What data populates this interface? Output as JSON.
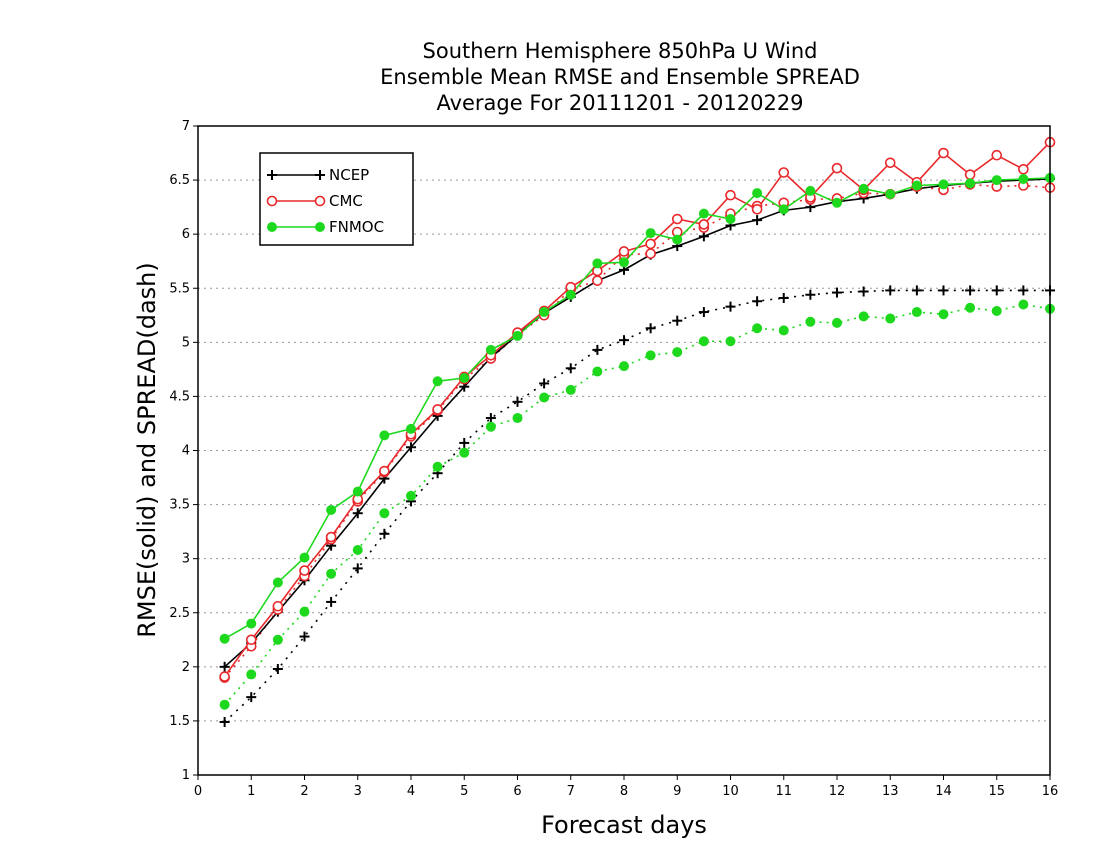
{
  "chart_data": {
    "type": "line",
    "title_lines": [
      "Southern Hemisphere 850hPa U Wind",
      "Ensemble Mean RMSE and Ensemble SPREAD",
      "Average For 20111201 - 20120229"
    ],
    "xlabel": "Forecast days",
    "ylabel": "RMSE(solid) and SPREAD(dash)",
    "xlim": [
      0,
      16
    ],
    "ylim": [
      1,
      7
    ],
    "xticks": [
      "0",
      "1",
      "2",
      "3",
      "4",
      "5",
      "6",
      "7",
      "8",
      "9",
      "10",
      "11",
      "12",
      "13",
      "14",
      "15",
      "16"
    ],
    "yticks": [
      "1",
      "1.5",
      "2",
      "2.5",
      "3",
      "3.5",
      "4",
      "4.5",
      "5",
      "5.5",
      "6",
      "6.5",
      "7"
    ],
    "grid": "dotted-horizontal",
    "legend_position": "top-left",
    "x": [
      0.5,
      1,
      1.5,
      2,
      2.5,
      3,
      3.5,
      4,
      4.5,
      5,
      5.5,
      6,
      6.5,
      7,
      7.5,
      8,
      8.5,
      9,
      9.5,
      10,
      10.5,
      11,
      11.5,
      12,
      12.5,
      13,
      13.5,
      14,
      14.5,
      15,
      15.5,
      16
    ],
    "series": [
      {
        "name": "NCEP",
        "color": "#000000",
        "marker": "plus",
        "rmse": [
          2.0,
          2.22,
          2.51,
          2.8,
          3.12,
          3.42,
          3.74,
          4.03,
          4.32,
          4.59,
          4.86,
          5.07,
          5.27,
          5.42,
          5.57,
          5.67,
          5.81,
          5.89,
          5.98,
          6.08,
          6.13,
          6.22,
          6.25,
          6.3,
          6.33,
          6.37,
          6.42,
          6.45,
          6.47,
          6.49,
          6.5,
          6.51
        ],
        "spread": [
          1.49,
          1.72,
          1.98,
          2.28,
          2.6,
          2.91,
          3.23,
          3.53,
          3.79,
          4.07,
          4.3,
          4.45,
          4.62,
          4.76,
          4.93,
          5.02,
          5.13,
          5.2,
          5.28,
          5.33,
          5.38,
          5.41,
          5.44,
          5.46,
          5.47,
          5.48,
          5.48,
          5.48,
          5.48,
          5.48,
          5.48,
          5.48
        ]
      },
      {
        "name": "CMC",
        "color": "#e8282a",
        "marker": "open-circle",
        "rmse": [
          1.91,
          2.25,
          2.56,
          2.89,
          3.2,
          3.55,
          3.81,
          4.15,
          4.38,
          4.68,
          4.88,
          5.09,
          5.29,
          5.51,
          5.66,
          5.84,
          5.91,
          6.14,
          6.09,
          6.36,
          6.23,
          6.57,
          6.34,
          6.61,
          6.41,
          6.66,
          6.48,
          6.75,
          6.55,
          6.73,
          6.6,
          6.85
        ],
        "spread": [
          1.9,
          2.19,
          2.53,
          2.84,
          3.18,
          3.53,
          3.8,
          4.13,
          4.37,
          4.66,
          4.85,
          5.07,
          5.25,
          5.49,
          5.57,
          5.81,
          5.82,
          6.02,
          6.06,
          6.19,
          6.26,
          6.29,
          6.32,
          6.33,
          6.38,
          6.37,
          6.44,
          6.41,
          6.46,
          6.44,
          6.45,
          6.43
        ]
      },
      {
        "name": "FNMOC",
        "color": "#1ed81e",
        "marker": "filled-circle",
        "rmse": [
          2.26,
          2.4,
          2.78,
          3.01,
          3.45,
          3.62,
          4.14,
          4.2,
          4.64,
          4.67,
          4.93,
          5.06,
          5.28,
          5.44,
          5.73,
          5.74,
          6.01,
          5.95,
          6.19,
          6.14,
          6.38,
          6.23,
          6.4,
          6.29,
          6.42,
          6.37,
          6.45,
          6.46,
          6.47,
          6.5,
          6.51,
          6.52
        ],
        "spread": [
          1.65,
          1.93,
          2.25,
          2.51,
          2.86,
          3.08,
          3.42,
          3.58,
          3.85,
          3.98,
          4.22,
          4.3,
          4.49,
          4.56,
          4.73,
          4.78,
          4.88,
          4.91,
          5.01,
          5.01,
          5.13,
          5.11,
          5.19,
          5.18,
          5.24,
          5.22,
          5.28,
          5.26,
          5.32,
          5.29,
          5.35,
          5.31
        ]
      }
    ]
  }
}
